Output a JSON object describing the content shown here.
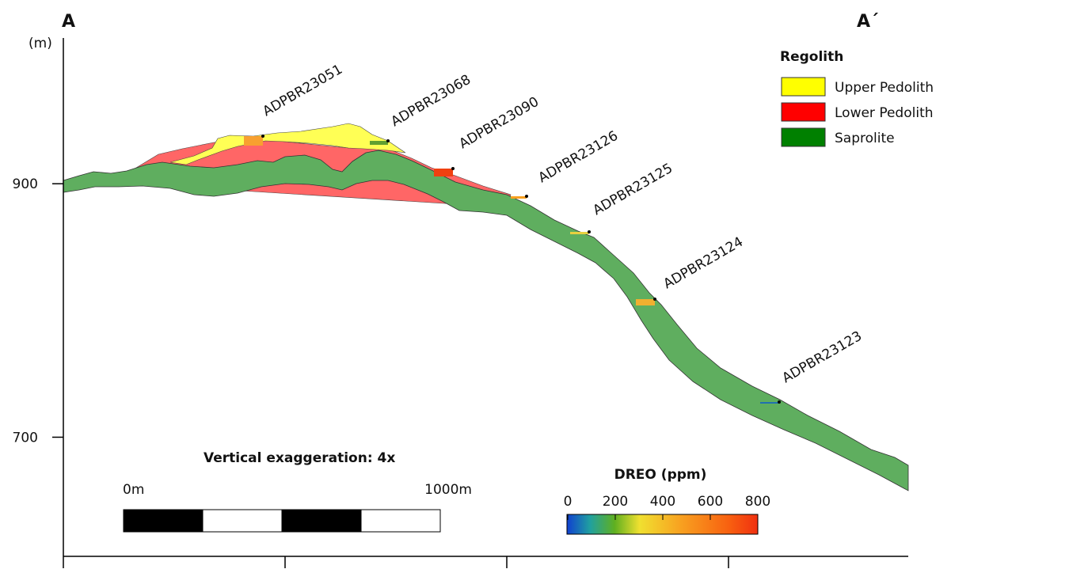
{
  "section": {
    "start_label": "A",
    "end_label": "A´"
  },
  "y_axis": {
    "unit": "(m)",
    "ylim": [
      606,
      1015
    ],
    "ticks": [
      900,
      700
    ]
  },
  "legend": {
    "title": "Regolith",
    "items": [
      {
        "name": "Upper Pedolith",
        "color": "#ffff00"
      },
      {
        "name": "Lower Pedolith",
        "color": "#ff0000"
      },
      {
        "name": "Saprolite",
        "color": "#008000"
      }
    ]
  },
  "drillholes": [
    "ADPBR23051",
    "ADPBR23068",
    "ADPBR23090",
    "ADPBR23126",
    "ADPBR23125",
    "ADPBR23124",
    "ADPBR23123"
  ],
  "note": "Vertical exaggeration: 4x",
  "scale_bar": {
    "labels": [
      "0m",
      "1000m"
    ]
  },
  "color_bar": {
    "title": "DREO (ppm)",
    "range": [
      0,
      800
    ],
    "ticks": [
      0,
      200,
      400,
      600,
      800
    ]
  }
}
